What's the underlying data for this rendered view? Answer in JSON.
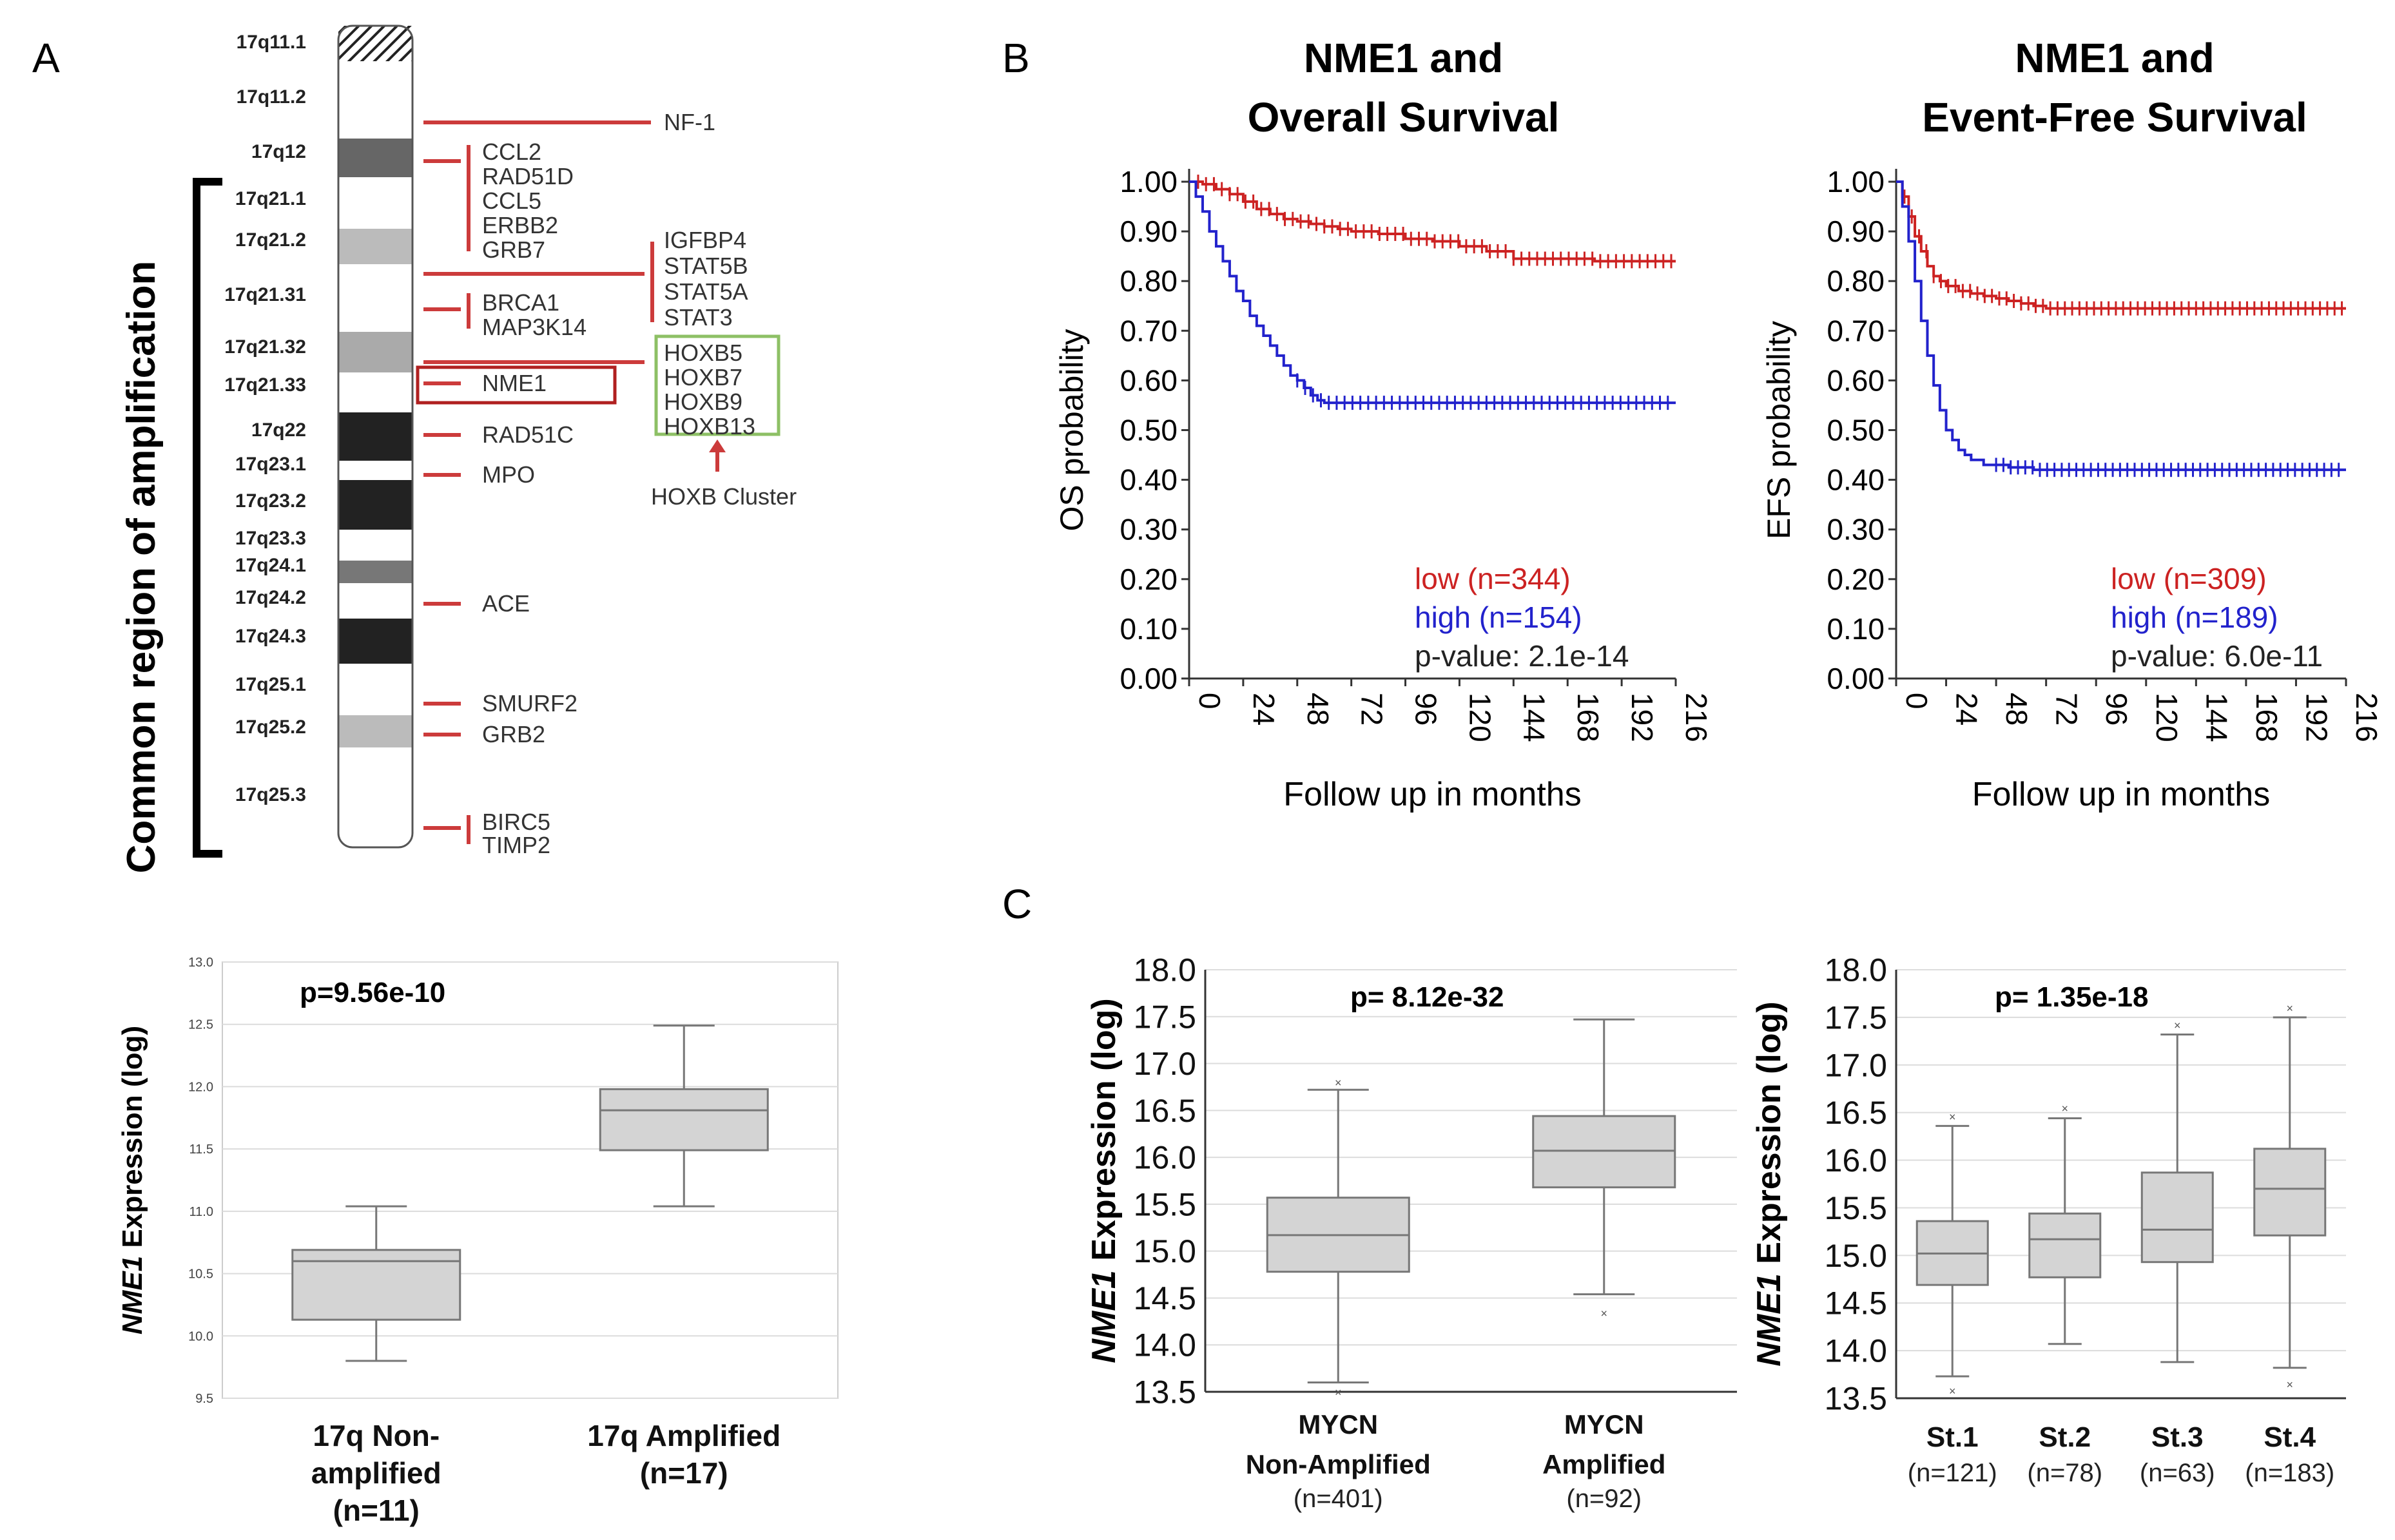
{
  "panel_a": {
    "label": "A",
    "region_label": "Common region of amplification",
    "bands": [
      "17q11.1",
      "17q11.2",
      "17q12",
      "17q21.1",
      "17q21.2",
      "17q21.31",
      "17q21.32",
      "17q21.33",
      "17q22",
      "17q23.1",
      "17q23.2",
      "17q23.3",
      "17q24.1",
      "17q24.2",
      "17q24.3",
      "17q25.1",
      "17q25.2",
      "17q25.3"
    ],
    "genes": {
      "nf1": "NF-1",
      "group1": [
        "CCL2",
        "RAD51D",
        "CCL5",
        "ERBB2",
        "GRB7"
      ],
      "group2": [
        "IGFBP4",
        "STAT5B",
        "STAT5A",
        "STAT3"
      ],
      "group3": [
        "BRCA1",
        "MAP3K14"
      ],
      "nme1": "NME1",
      "hoxb": [
        "HOXB5",
        "HOXB7",
        "HOXB9",
        "HOXB13"
      ],
      "rad51c": "RAD51C",
      "mpo": "MPO",
      "ace": "ACE",
      "smurf2": "SMURF2",
      "grb2": "GRB2",
      "group4": [
        "BIRC5",
        "TIMP2"
      ]
    },
    "hoxb_cluster_label": "HOXB Cluster"
  },
  "panel_b": {
    "label": "B"
  },
  "panel_c": {
    "label": "C"
  },
  "chart_data": [
    {
      "id": "a_box",
      "type": "box",
      "title": "p=9.56e-10",
      "ylabel_italic": "NME1",
      "ylabel_rest": " Expression (log)",
      "ylim": [
        9.5,
        13.0
      ],
      "yticks": [
        "9.5",
        "10.0",
        "10.5",
        "11.0",
        "11.5",
        "12.0",
        "12.5",
        "13.0"
      ],
      "groups": [
        {
          "label": [
            "17q Non-",
            "amplified",
            "(n=11)"
          ],
          "min": 9.8,
          "q1": 10.13,
          "median": 10.6,
          "q3": 10.69,
          "max": 11.04
        },
        {
          "label": [
            "17q Amplified",
            "(n=17)"
          ],
          "min": 11.04,
          "q1": 11.49,
          "median": 11.81,
          "q3": 11.98,
          "max": 12.49
        }
      ]
    },
    {
      "id": "os_km",
      "type": "line",
      "title": [
        "NME1 and",
        "Overall Survival"
      ],
      "ylabel": "OS probability",
      "xlabel": "Follow up in months",
      "xticks": [
        "0",
        "24",
        "48",
        "72",
        "96",
        "120",
        "144",
        "168",
        "192",
        "216"
      ],
      "yticks": [
        "0.00",
        "0.10",
        "0.20",
        "0.30",
        "0.40",
        "0.50",
        "0.60",
        "0.70",
        "0.80",
        "0.90",
        "1.00"
      ],
      "xlim": [
        0,
        216
      ],
      "ylim": [
        0,
        1
      ],
      "legend": [
        "low (n=344)",
        "high (n=154)",
        "p-value: 2.1e-14"
      ],
      "series": [
        {
          "name": "low (n=344)",
          "color": "#cc2222",
          "x": [
            0,
            6,
            12,
            18,
            24,
            30,
            36,
            42,
            48,
            54,
            60,
            66,
            72,
            84,
            96,
            108,
            120,
            132,
            144,
            156,
            168,
            180,
            192,
            204,
            216
          ],
          "y": [
            1.0,
            0.995,
            0.985,
            0.975,
            0.96,
            0.945,
            0.935,
            0.925,
            0.92,
            0.915,
            0.91,
            0.905,
            0.9,
            0.895,
            0.885,
            0.88,
            0.87,
            0.86,
            0.845,
            0.845,
            0.845,
            0.84,
            0.84,
            0.84,
            0.84
          ]
        },
        {
          "name": "high (n=154)",
          "color": "#2222cc",
          "x": [
            0,
            3,
            6,
            9,
            12,
            15,
            18,
            21,
            24,
            27,
            30,
            33,
            36,
            39,
            42,
            45,
            48,
            51,
            54,
            57,
            60,
            72,
            96,
            120,
            144,
            168,
            192,
            216
          ],
          "y": [
            1.0,
            0.97,
            0.94,
            0.9,
            0.87,
            0.84,
            0.81,
            0.78,
            0.76,
            0.73,
            0.71,
            0.69,
            0.67,
            0.65,
            0.63,
            0.61,
            0.6,
            0.585,
            0.57,
            0.56,
            0.555,
            0.555,
            0.555,
            0.555,
            0.555,
            0.555,
            0.555,
            0.555
          ]
        }
      ]
    },
    {
      "id": "efs_km",
      "type": "line",
      "title": [
        "NME1 and",
        "Event-Free Survival"
      ],
      "ylabel": "EFS probability",
      "xlabel": "Follow up in months",
      "xticks": [
        "0",
        "24",
        "48",
        "72",
        "96",
        "120",
        "144",
        "168",
        "192",
        "216"
      ],
      "yticks": [
        "0.00",
        "0.10",
        "0.20",
        "0.30",
        "0.40",
        "0.50",
        "0.60",
        "0.70",
        "0.80",
        "0.90",
        "1.00"
      ],
      "xlim": [
        0,
        216
      ],
      "ylim": [
        0,
        1
      ],
      "legend": [
        "low (n=309)",
        "high (n=189)",
        "p-value: 6.0e-11"
      ],
      "series": [
        {
          "name": "low (n=309)",
          "color": "#cc2222",
          "x": [
            0,
            3,
            6,
            9,
            12,
            15,
            18,
            21,
            24,
            30,
            36,
            42,
            48,
            54,
            60,
            66,
            72,
            96,
            120,
            144,
            168,
            192,
            216
          ],
          "y": [
            1.0,
            0.97,
            0.93,
            0.89,
            0.86,
            0.83,
            0.81,
            0.8,
            0.79,
            0.78,
            0.775,
            0.77,
            0.765,
            0.76,
            0.755,
            0.75,
            0.745,
            0.745,
            0.745,
            0.745,
            0.745,
            0.745,
            0.745
          ]
        },
        {
          "name": "high (n=189)",
          "color": "#2222cc",
          "x": [
            0,
            3,
            6,
            9,
            12,
            15,
            18,
            21,
            24,
            27,
            30,
            33,
            36,
            42,
            48,
            54,
            60,
            66,
            72,
            96,
            120,
            144,
            168,
            192,
            216
          ],
          "y": [
            1.0,
            0.95,
            0.88,
            0.8,
            0.72,
            0.65,
            0.59,
            0.54,
            0.5,
            0.48,
            0.46,
            0.45,
            0.44,
            0.43,
            0.43,
            0.425,
            0.425,
            0.42,
            0.42,
            0.42,
            0.42,
            0.42,
            0.42,
            0.42,
            0.42
          ]
        }
      ]
    },
    {
      "id": "c_mycn_box",
      "type": "box",
      "title": "p= 8.12e-32",
      "ylabel_italic": "NME1",
      "ylabel_rest": " Expression (log)",
      "ylim": [
        13.5,
        18.0
      ],
      "yticks": [
        "13.5",
        "14.0",
        "14.5",
        "15.0",
        "15.5",
        "16.0",
        "16.5",
        "17.0",
        "17.5",
        "18.0"
      ],
      "groups": [
        {
          "label": [
            "MYCN",
            "Non-Amplified"
          ],
          "n": "(n=401)",
          "min": 13.6,
          "q1": 14.78,
          "median": 15.17,
          "q3": 15.57,
          "max": 16.72,
          "outliers": [
            16.8,
            13.5
          ]
        },
        {
          "label": [
            "MYCN",
            "Amplified"
          ],
          "n": "(n=92)",
          "min": 14.54,
          "q1": 15.68,
          "median": 16.07,
          "q3": 16.44,
          "max": 17.47,
          "outliers": [
            14.34
          ]
        }
      ]
    },
    {
      "id": "c_stage_box",
      "type": "box",
      "title": "p= 1.35e-18",
      "ylabel_italic": "NME1",
      "ylabel_rest": " Expression (log)",
      "ylim": [
        13.5,
        18.0
      ],
      "yticks": [
        "13.5",
        "14.0",
        "14.5",
        "15.0",
        "15.5",
        "16.0",
        "16.5",
        "17.0",
        "17.5",
        "18.0"
      ],
      "groups": [
        {
          "label": [
            "St.1"
          ],
          "n": "(n=121)",
          "min": 13.73,
          "q1": 14.69,
          "median": 15.02,
          "q3": 15.36,
          "max": 16.36,
          "outliers": [
            16.46,
            13.58
          ]
        },
        {
          "label": [
            "St.2"
          ],
          "n": "(n=78)",
          "min": 14.07,
          "q1": 14.77,
          "median": 15.17,
          "q3": 15.44,
          "max": 16.44,
          "outliers": [
            16.55
          ]
        },
        {
          "label": [
            "St.3"
          ],
          "n": "(n=63)",
          "min": 13.88,
          "q1": 14.93,
          "median": 15.27,
          "q3": 15.87,
          "max": 17.32,
          "outliers": [
            17.42
          ]
        },
        {
          "label": [
            "St.4"
          ],
          "n": "(n=183)",
          "min": 13.82,
          "q1": 15.21,
          "median": 15.7,
          "q3": 16.12,
          "max": 17.5,
          "outliers": [
            17.6,
            13.65
          ]
        }
      ]
    }
  ]
}
